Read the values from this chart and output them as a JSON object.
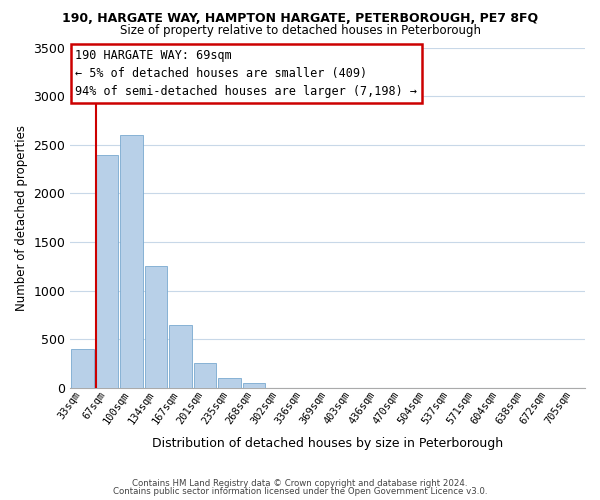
{
  "title_line1": "190, HARGATE WAY, HAMPTON HARGATE, PETERBOROUGH, PE7 8FQ",
  "title_line2": "Size of property relative to detached houses in Peterborough",
  "xlabel": "Distribution of detached houses by size in Peterborough",
  "ylabel": "Number of detached properties",
  "bar_labels": [
    "33sqm",
    "67sqm",
    "100sqm",
    "134sqm",
    "167sqm",
    "201sqm",
    "235sqm",
    "268sqm",
    "302sqm",
    "336sqm",
    "369sqm",
    "403sqm",
    "436sqm",
    "470sqm",
    "504sqm",
    "537sqm",
    "571sqm",
    "604sqm",
    "638sqm",
    "672sqm",
    "705sqm"
  ],
  "bar_values": [
    400,
    2400,
    2600,
    1250,
    650,
    260,
    100,
    50,
    0,
    0,
    0,
    0,
    0,
    0,
    0,
    0,
    0,
    0,
    0,
    0,
    0
  ],
  "bar_color": "#b8d0e8",
  "bar_edge_color": "#7aaad0",
  "vline_x": 1,
  "vline_color": "#cc0000",
  "ylim": [
    0,
    3500
  ],
  "yticks": [
    0,
    500,
    1000,
    1500,
    2000,
    2500,
    3000,
    3500
  ],
  "annotation_title": "190 HARGATE WAY: 69sqm",
  "annotation_line1": "← 5% of detached houses are smaller (409)",
  "annotation_line2": "94% of semi-detached houses are larger (7,198) →",
  "annotation_box_color": "#ffffff",
  "annotation_box_edge": "#cc0000",
  "footnote1": "Contains HM Land Registry data © Crown copyright and database right 2024.",
  "footnote2": "Contains public sector information licensed under the Open Government Licence v3.0.",
  "background_color": "#ffffff",
  "grid_color": "#c8d8e8"
}
